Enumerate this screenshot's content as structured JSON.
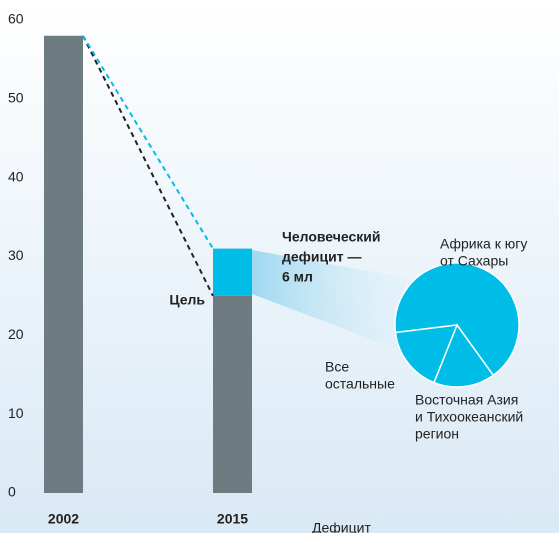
{
  "chart_data": [
    {
      "type": "bar",
      "stacked": true,
      "categories": [
        "2002",
        "2015"
      ],
      "series": [
        {
          "color": "#6e7b80",
          "values": [
            58,
            25
          ]
        },
        {
          "color": "#00bde8",
          "values": [
            null,
            6
          ]
        }
      ],
      "ylim": [
        0,
        60
      ],
      "yticks": [
        0,
        10,
        20,
        30,
        40,
        50,
        60
      ],
      "annotations": {
        "target": "Цель",
        "deficit": [
          "Человеческий",
          "дефицит —",
          "6 мл"
        ],
        "footer": "Дефицит"
      }
    },
    {
      "type": "pie",
      "labels": [
        [
          "Африка к югу",
          "от Сахары"
        ],
        [
          "Восточная Азия",
          "и Тихоокеанский",
          "регион"
        ],
        [
          "Все",
          "остальные"
        ]
      ],
      "values": [
        67,
        16,
        17
      ],
      "color": "#00bde8"
    }
  ]
}
